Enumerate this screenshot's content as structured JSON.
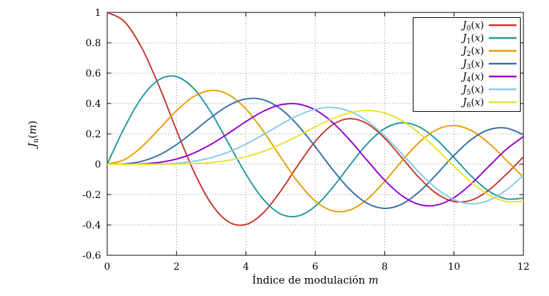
{
  "chart_data": {
    "type": "line",
    "title": "",
    "xlabel": {
      "text": "Índice de modulación",
      "var": "m"
    },
    "ylabel": {
      "base": "J",
      "sub": "n",
      "open": "(",
      "var": "m",
      "close": ")"
    },
    "xlim": [
      0,
      12
    ],
    "ylim": [
      -0.6,
      1
    ],
    "grid": true,
    "legend_position": "top-right",
    "xticks": [
      "0",
      "2",
      "4",
      "6",
      "8",
      "10",
      "12"
    ],
    "yticks": [
      "1",
      "0.8",
      "0.6",
      "0.4",
      "0.2",
      "0",
      "-0.2",
      "-0.4",
      "-0.6"
    ],
    "x": [
      0,
      0.5,
      1,
      1.5,
      2,
      2.5,
      3,
      3.5,
      4,
      4.5,
      5,
      5.5,
      6,
      6.5,
      7,
      7.5,
      8,
      8.5,
      9,
      9.5,
      10,
      10.5,
      11,
      11.5,
      12
    ],
    "series": [
      {
        "id": "j0",
        "label": {
          "base": "J",
          "sub": "0",
          "open": "(",
          "var": "x",
          "close": ")"
        },
        "color": "#c7362b",
        "values": [
          1,
          0.9385,
          0.7652,
          0.5118,
          0.2239,
          -0.0484,
          -0.2601,
          -0.3801,
          -0.3971,
          -0.3205,
          -0.1776,
          -0.0068,
          0.1506,
          0.2601,
          0.3001,
          0.2663,
          0.1717,
          0.0419,
          -0.0903,
          -0.1939,
          -0.2459,
          -0.2366,
          -0.1712,
          -0.0677,
          0.0477
        ]
      },
      {
        "id": "j1",
        "label": {
          "base": "J",
          "sub": "1",
          "open": "(",
          "var": "x",
          "close": ")"
        },
        "color": "#20989d",
        "values": [
          0,
          0.2423,
          0.4401,
          0.5579,
          0.5767,
          0.4971,
          0.3391,
          0.1374,
          -0.066,
          -0.2311,
          -0.3276,
          -0.3414,
          -0.2767,
          -0.1538,
          -0.0047,
          0.1352,
          0.2346,
          0.2731,
          0.2453,
          0.1613,
          0.0435,
          -0.0789,
          -0.1768,
          -0.2284,
          -0.2234
        ]
      },
      {
        "id": "j2",
        "label": {
          "base": "J",
          "sub": "2",
          "open": "(",
          "var": "x",
          "close": ")"
        },
        "color": "#e69f00",
        "values": [
          0,
          0.0306,
          0.1149,
          0.2321,
          0.3528,
          0.4461,
          0.4861,
          0.4586,
          0.3641,
          0.2178,
          0.0466,
          -0.1173,
          -0.2429,
          -0.3074,
          -0.3014,
          -0.2303,
          -0.113,
          0.0223,
          0.1448,
          0.2279,
          0.2546,
          0.2216,
          0.139,
          0.028,
          -0.0849
        ]
      },
      {
        "id": "j3",
        "label": {
          "base": "J",
          "sub": "3",
          "open": "(",
          "var": "x",
          "close": ")"
        },
        "color": "#356fa5",
        "values": [
          0,
          0.0026,
          0.0196,
          0.061,
          0.1289,
          0.2166,
          0.3091,
          0.3868,
          0.4302,
          0.4247,
          0.3648,
          0.2561,
          0.1148,
          -0.0353,
          -0.1676,
          -0.2581,
          -0.2911,
          -0.2626,
          -0.1809,
          -0.0653,
          0.0584,
          0.1633,
          0.2273,
          0.2381,
          0.1951
        ]
      },
      {
        "id": "j4",
        "label": {
          "base": "J",
          "sub": "4",
          "open": "(",
          "var": "x",
          "close": ")"
        },
        "color": "#9400d3",
        "values": [
          0,
          0.0002,
          0.0025,
          0.0118,
          0.034,
          0.0738,
          0.132,
          0.2044,
          0.2811,
          0.3484,
          0.3912,
          0.3967,
          0.3576,
          0.2748,
          0.1578,
          0.0238,
          -0.1054,
          -0.2077,
          -0.2655,
          -0.2692,
          -0.2196,
          -0.1283,
          -0.015,
          0.0963,
          0.1825
        ]
      },
      {
        "id": "j5",
        "label": {
          "base": "J",
          "sub": "5",
          "open": "(",
          "var": "x",
          "close": ")"
        },
        "color": "#86cbe6",
        "values": [
          0,
          0,
          0.0002,
          0.0018,
          0.007,
          0.0195,
          0.043,
          0.0804,
          0.1321,
          0.1947,
          0.2611,
          0.3209,
          0.3621,
          0.3736,
          0.3479,
          0.2835,
          0.1858,
          0.0671,
          -0.055,
          -0.1613,
          -0.2341,
          -0.2611,
          -0.2383,
          -0.1711,
          -0.0735
        ]
      },
      {
        "id": "j6",
        "label": {
          "base": "J",
          "sub": "6",
          "open": "(",
          "var": "x",
          "close": ")"
        },
        "color": "#e7e134",
        "values": [
          0,
          0,
          0,
          0.0002,
          0.0012,
          0.0042,
          0.0114,
          0.0254,
          0.0491,
          0.0843,
          0.131,
          0.1868,
          0.2458,
          0.2999,
          0.3392,
          0.3541,
          0.3376,
          0.2867,
          0.2043,
          0.0994,
          -0.0145,
          -0.1203,
          -0.2016,
          -0.2451,
          -0.2437
        ]
      }
    ]
  }
}
